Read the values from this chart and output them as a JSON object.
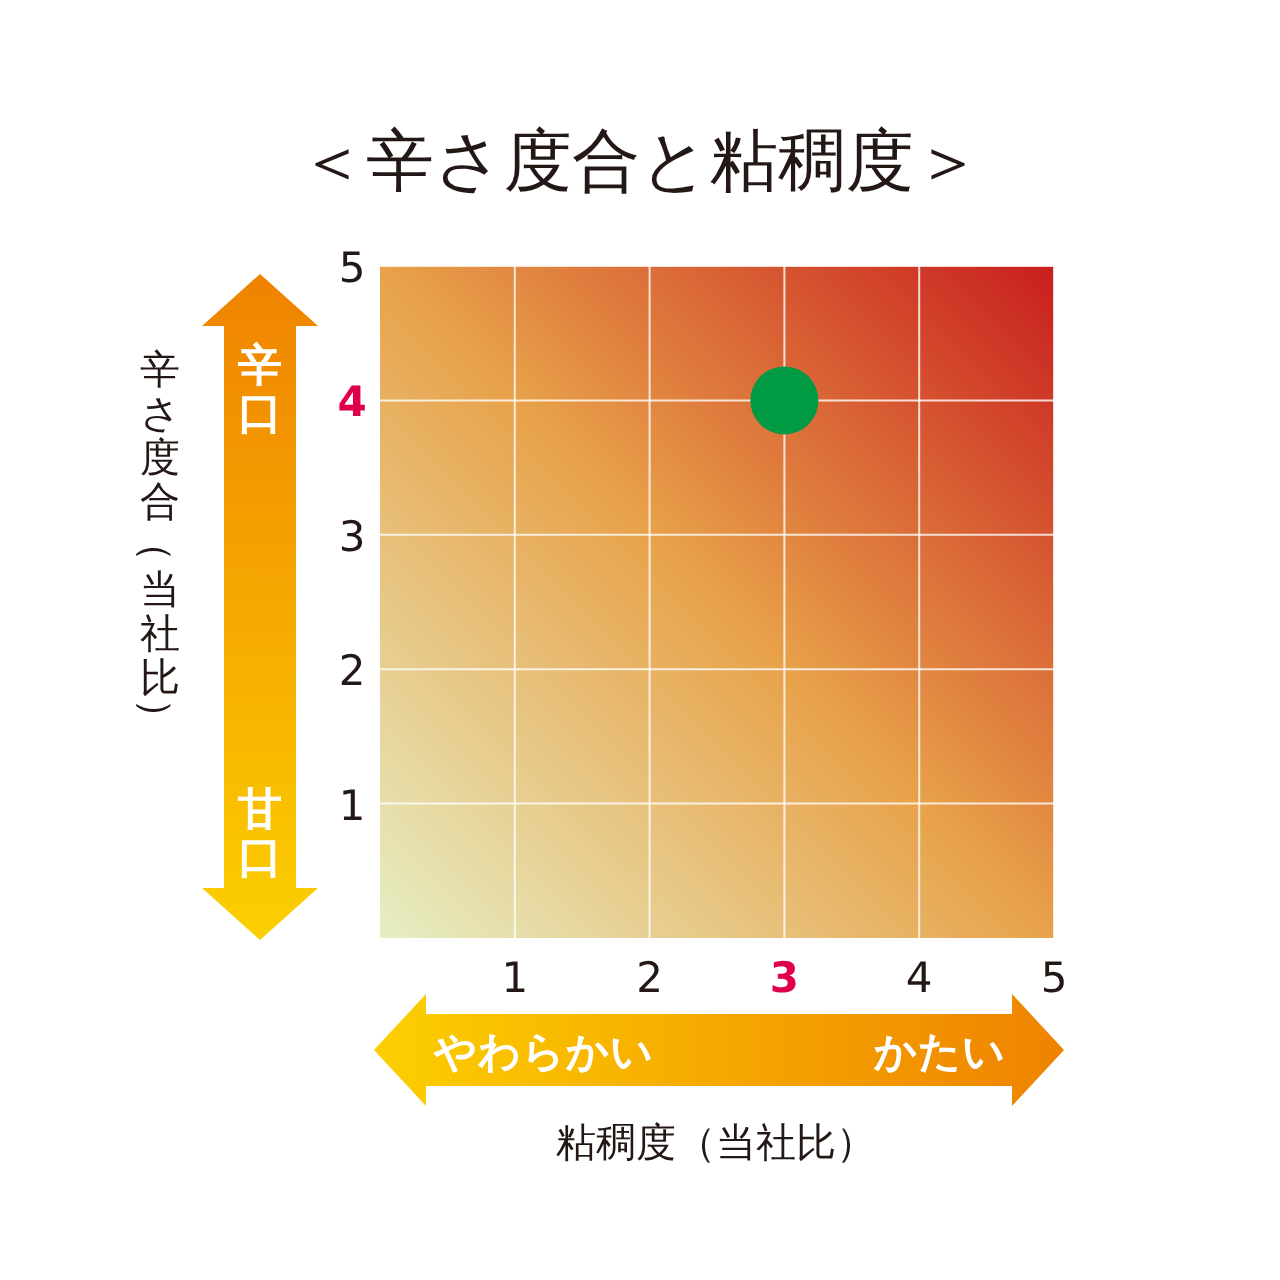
{
  "chart_data": {
    "type": "scatter",
    "title": "＜辛さ度合と粘稠度＞",
    "xlabel": "粘稠度（当社比）",
    "ylabel": "辛さ度合（当社比）",
    "x": [
      3
    ],
    "values": [
      4
    ],
    "color": "#009944",
    "marker": "circle",
    "xlim": [
      0,
      5
    ],
    "ylim": [
      0,
      5
    ],
    "xticks": [
      1,
      2,
      3,
      4,
      5
    ],
    "yticks": [
      1,
      2,
      3,
      4,
      5
    ],
    "grid": true,
    "annotations": [
      "辛口",
      "甘口",
      "やわらかい",
      "かたい"
    ]
  }
}
